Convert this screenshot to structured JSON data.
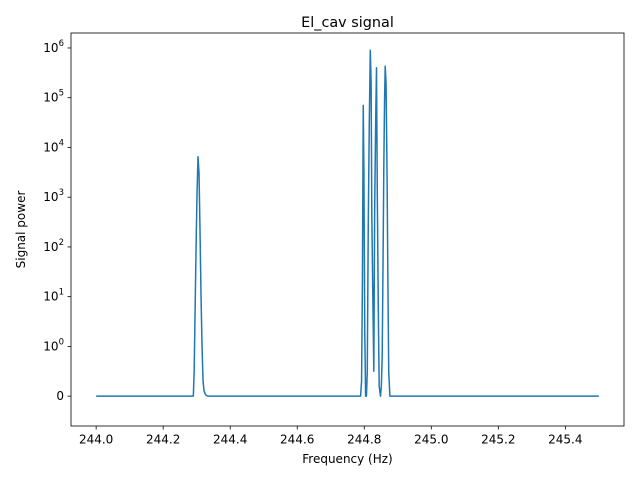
{
  "chart_data": {
    "type": "line",
    "title": "El_cav signal",
    "xlabel": "Frequency (Hz)",
    "ylabel": "Signal power",
    "yscale": "symlog",
    "symlog_linthresh": 1,
    "xlim": [
      243.925,
      245.575
    ],
    "ylim": [
      -0.6,
      2000000
    ],
    "grid": false,
    "legend": "none",
    "line_color": "#1f77b4",
    "x_ticks": [
      {
        "value": 244.0,
        "label": "244.0"
      },
      {
        "value": 244.2,
        "label": "244.2"
      },
      {
        "value": 244.4,
        "label": "244.4"
      },
      {
        "value": 244.6,
        "label": "244.6"
      },
      {
        "value": 244.8,
        "label": "244.8"
      },
      {
        "value": 245.0,
        "label": "245.0"
      },
      {
        "value": 245.2,
        "label": "245.2"
      },
      {
        "value": 245.4,
        "label": "245.4"
      }
    ],
    "y_ticks": [
      {
        "value": 0,
        "base": "0",
        "exp": ""
      },
      {
        "value": 1,
        "base": "10",
        "exp": "0"
      },
      {
        "value": 10,
        "base": "10",
        "exp": "1"
      },
      {
        "value": 100,
        "base": "10",
        "exp": "2"
      },
      {
        "value": 1000,
        "base": "10",
        "exp": "3"
      },
      {
        "value": 10000,
        "base": "10",
        "exp": "4"
      },
      {
        "value": 100000,
        "base": "10",
        "exp": "5"
      },
      {
        "value": 1000000,
        "base": "10",
        "exp": "6"
      }
    ],
    "series": [
      {
        "x": [
          244.0,
          244.29,
          244.2925,
          244.295,
          244.298,
          244.301,
          244.304,
          244.307,
          244.31,
          244.313,
          244.316,
          244.319,
          244.322,
          244.325,
          244.328,
          244.3305,
          244.333,
          244.336,
          244.785,
          244.789,
          244.792,
          244.7945,
          244.797,
          244.799,
          244.8015,
          244.804,
          244.8065,
          244.809,
          244.812,
          244.815,
          244.818,
          244.8205,
          244.8225,
          244.825,
          244.8285,
          244.831,
          244.834,
          244.8365,
          244.839,
          244.842,
          244.8445,
          244.8485,
          244.851,
          244.8535,
          244.856,
          244.8585,
          244.8605,
          244.8625,
          244.865,
          244.868,
          244.8705,
          244.873,
          244.8765,
          245.5
        ],
        "y": [
          0,
          0,
          0.5,
          4,
          80,
          1200,
          6500,
          3000,
          200,
          10,
          1,
          0.3,
          0.1,
          0.05,
          0.02,
          0.01,
          0,
          0,
          0,
          0,
          0.3,
          20,
          70000,
          3000,
          2,
          0,
          0,
          0.5,
          300,
          30000,
          900000,
          200000,
          500,
          20,
          0.5,
          500,
          30000,
          400000,
          1000,
          5,
          0.2,
          0,
          0.2,
          0.8,
          50,
          5000,
          80000,
          430000,
          200000,
          3000,
          20,
          0.5,
          0,
          0
        ]
      }
    ]
  }
}
